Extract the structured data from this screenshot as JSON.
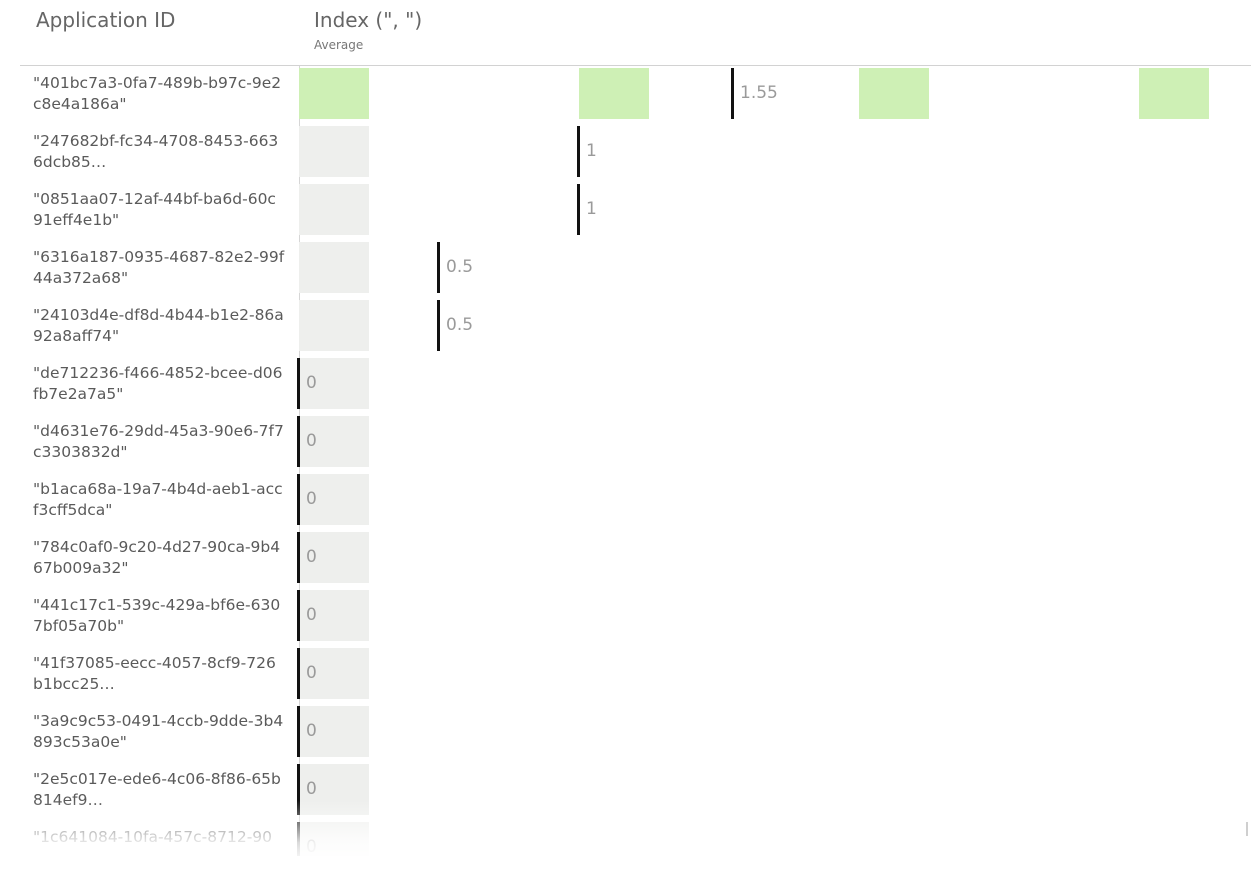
{
  "header": {
    "col1_title": "Application ID",
    "col2_title": "Index (\", \")",
    "col2_subtitle": "Average"
  },
  "colors": {
    "green_bar": "#cef0b5",
    "grey_bar": "#eeefed",
    "marker": "#111111",
    "axis": "#d6d6d6"
  },
  "rows": [
    {
      "id": "\"401bc7a3-0fa7-489b-b97c-9e2c8e4a186a\"",
      "value": 1.55,
      "value_label": "1.55",
      "style": "green"
    },
    {
      "id": "\"247682bf-fc34-4708-8453-6636dcb85…",
      "value": 1,
      "value_label": "1",
      "style": "grey"
    },
    {
      "id": "\"0851aa07-12af-44bf-ba6d-60c91eff4e1b\"",
      "value": 1,
      "value_label": "1",
      "style": "grey"
    },
    {
      "id": "\"6316a187-0935-4687-82e2-99f44a372a68\"",
      "value": 0.5,
      "value_label": "0.5",
      "style": "grey"
    },
    {
      "id": "\"24103d4e-df8d-4b44-b1e2-86a92a8aff74\"",
      "value": 0.5,
      "value_label": "0.5",
      "style": "grey"
    },
    {
      "id": "\"de712236-f466-4852-bcee-d06fb7e2a7a5\"",
      "value": 0,
      "value_label": "0",
      "style": "grey"
    },
    {
      "id": "\"d4631e76-29dd-45a3-90e6-7f7c3303832d\"",
      "value": 0,
      "value_label": "0",
      "style": "grey"
    },
    {
      "id": "\"b1aca68a-19a7-4b4d-aeb1-accf3cff5dca\"",
      "value": 0,
      "value_label": "0",
      "style": "grey"
    },
    {
      "id": "\"784c0af0-9c20-4d27-90ca-9b467b009a32\"",
      "value": 0,
      "value_label": "0",
      "style": "grey"
    },
    {
      "id": "\"441c17c1-539c-429a-bf6e-6307bf05a70b\"",
      "value": 0,
      "value_label": "0",
      "style": "grey"
    },
    {
      "id": "\"41f37085-eecc-4057-8cf9-726b1bcc25…",
      "value": 0,
      "value_label": "0",
      "style": "grey"
    },
    {
      "id": "\"3a9c9c53-0491-4ccb-9dde-3b4893c53a0e\"",
      "value": 0,
      "value_label": "0",
      "style": "grey"
    },
    {
      "id": "\"2e5c017e-ede6-4c06-8f86-65b814ef9…",
      "value": 0,
      "value_label": "0",
      "style": "grey"
    },
    {
      "id": "\"1c641084-10fa-457c-8712-90",
      "value": 0,
      "value_label": "0",
      "style": "grey"
    }
  ]
}
